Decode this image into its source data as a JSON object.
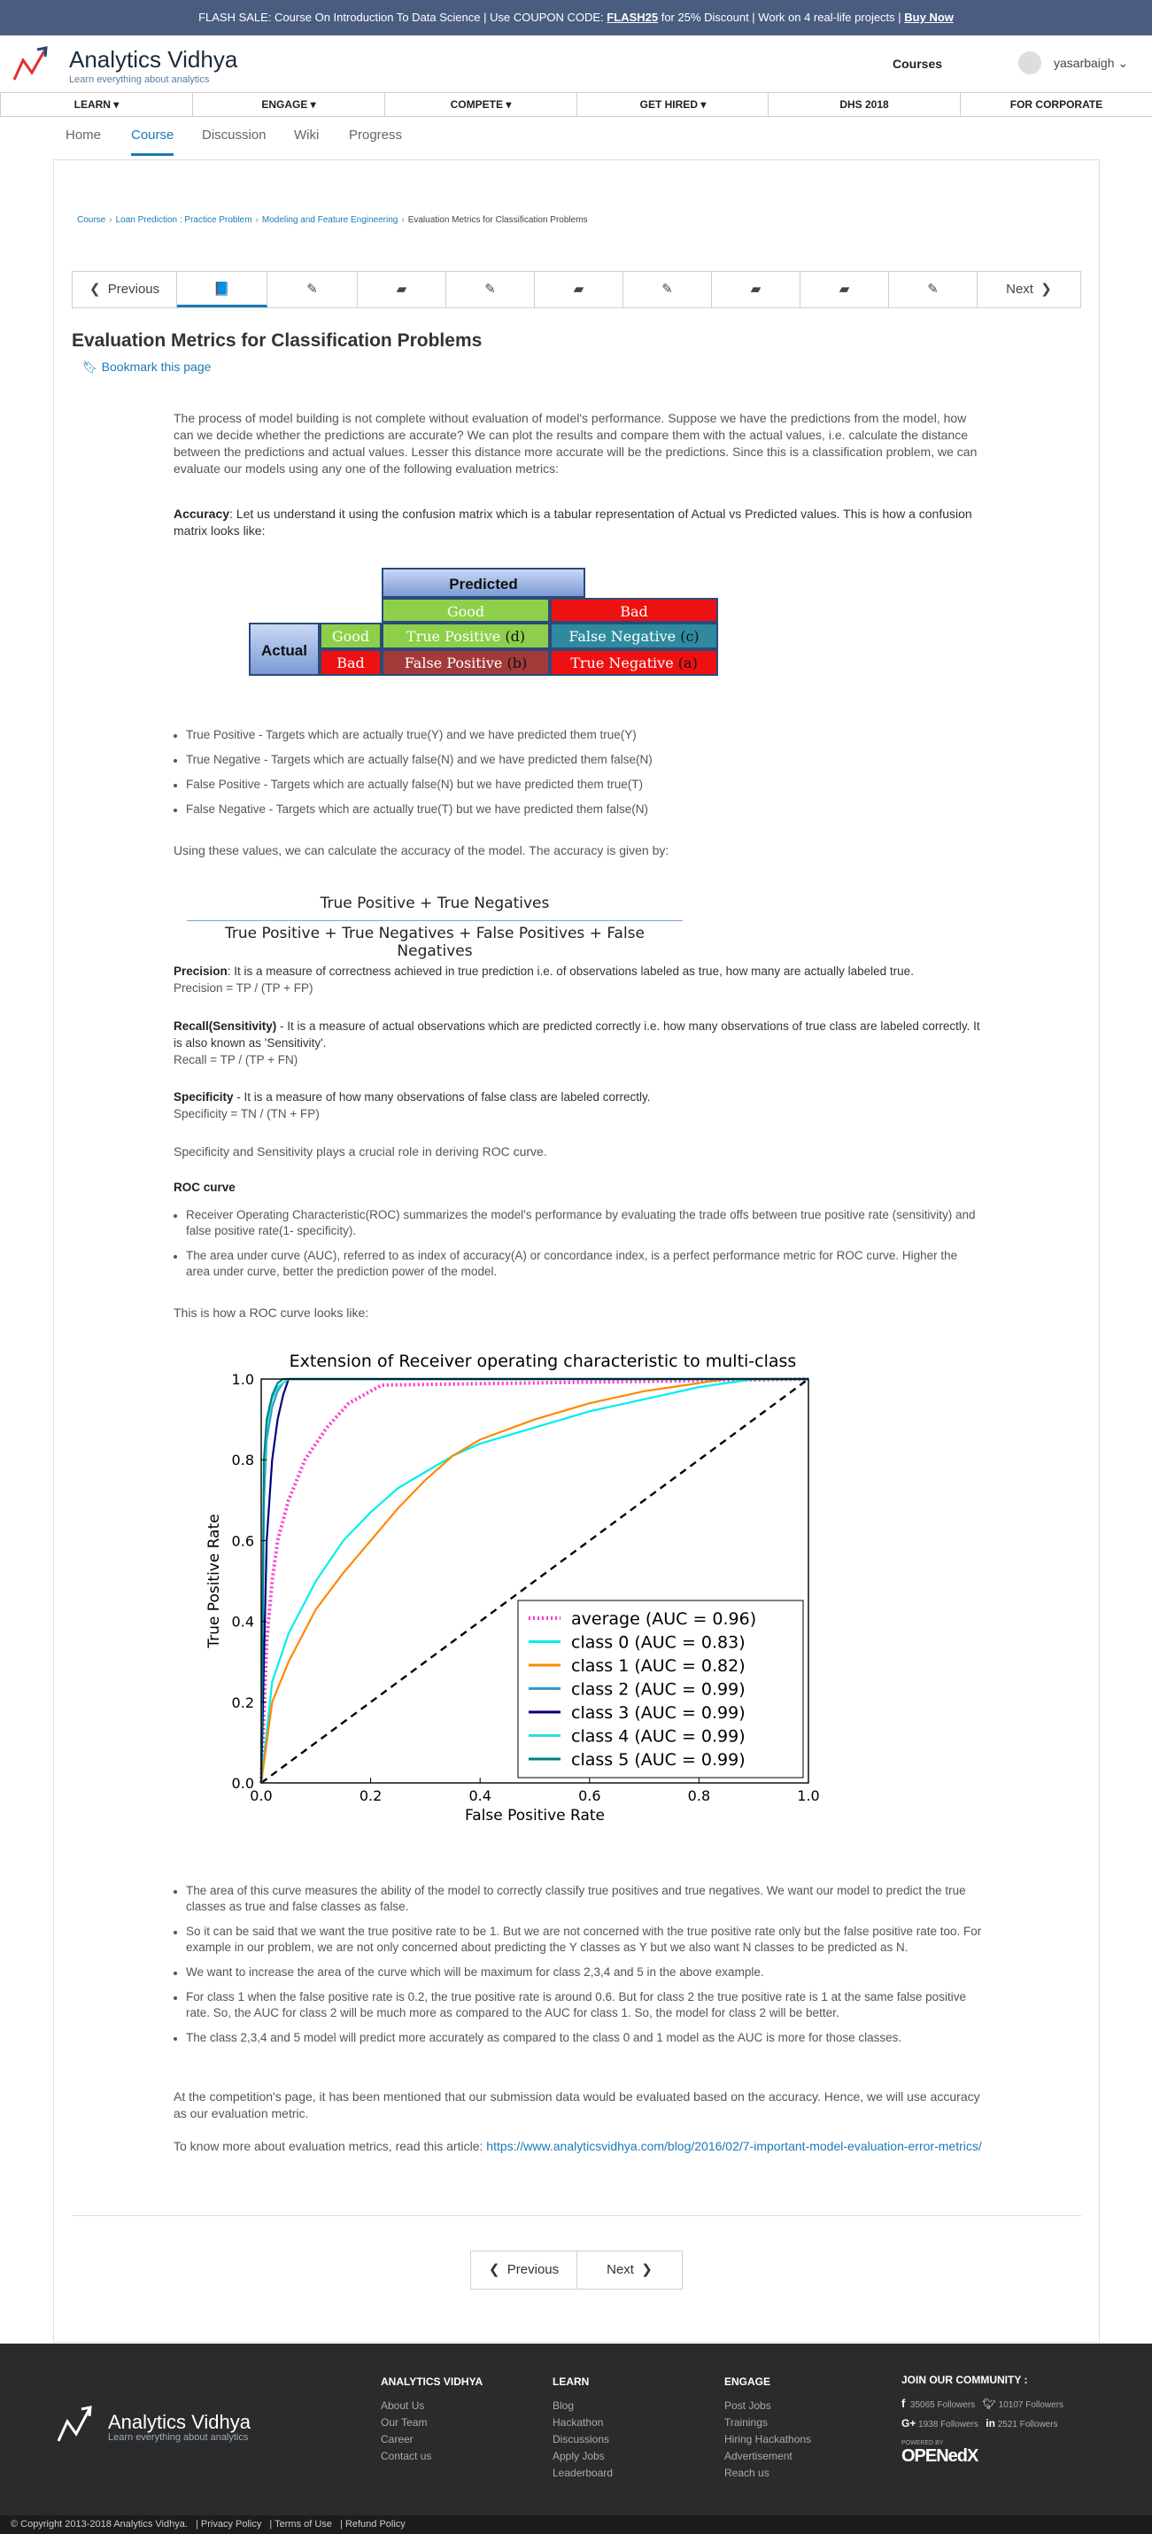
{
  "banner": {
    "prefix": "FLASH SALE: Course On Introduction To Data Science | Use COUPON CODE: ",
    "code": "FLASH25",
    "middle": " for 25% Discount | Work on 4 real-life projects | ",
    "cta": "Buy Now"
  },
  "header": {
    "brand": "Analytics Vidhya",
    "tagline": "Learn everything about analytics",
    "courses": "Courses",
    "username": "yasarbaigh"
  },
  "mainnav": [
    "LEARN ▾",
    "ENGAGE ▾",
    "COMPETE ▾",
    "GET HIRED ▾",
    "DHS 2018",
    "FOR CORPORATE"
  ],
  "coursetabs": [
    "Home",
    "Course",
    "Discussion",
    "Wiki",
    "Progress"
  ],
  "breadcrumbs": [
    "Course",
    "Loan Prediction : Practice Problem",
    "Modeling and Feature Engineering",
    "Evaluation Metrics for Classification Problems"
  ],
  "seqnav": {
    "previous": "Previous",
    "next": "Next"
  },
  "page": {
    "title": "Evaluation Metrics for Classification Problems",
    "bookmark": "Bookmark this page",
    "intro": "The process of model building is not complete without evaluation of model's performance. Suppose we have the predictions from the model, how can we decide whether the predictions are accurate? We can plot the results and compare them with the actual values, i.e. calculate the distance between the predictions and actual values. Lesser this distance more accurate will be the predictions. Since this is a classification problem, we can evaluate our models using any one of the following evaluation metrics:",
    "accuracy_label": "Accuracy",
    "accuracy_text": ": Let us understand it using the confusion matrix which is a tabular representation of Actual vs Predicted values. This is how a confusion matrix looks like:",
    "confusion": {
      "predicted": "Predicted",
      "actual": "Actual",
      "good": "Good",
      "bad": "Bad",
      "tp": "True Positive",
      "tp_tag": "d",
      "fn": "False Negative",
      "fn_tag": "c",
      "fp": "False Positive",
      "fp_tag": "b",
      "tn": "True Negative",
      "tn_tag": "a"
    },
    "defs": [
      "True Positive - Targets which are actually true(Y) and we have predicted them true(Y)",
      "True Negative - Targets which are actually false(N) and we have predicted them false(N)",
      "False Positive - Targets which are actually false(N) but we have predicted them true(T)",
      "False Negative - Targets which are actually true(T) but we have predicted them false(N)"
    ],
    "accuracy_given": "Using these values, we can calculate the accuracy of the model. The accuracy is given by:",
    "frac_num": "True Positive + True Negatives",
    "frac_den": "True Positive + True Negatives + False Positives + False Negatives",
    "precision_label": "Precision",
    "precision_text": ": It is a measure of correctness achieved in true prediction i.e. of observations labeled as true, how many are actually labeled true.",
    "precision_formula": "Precision = TP / (TP + FP)",
    "recall_label": "Recall(Sensitivity)",
    "recall_text": " - It is a measure of actual observations which are predicted correctly i.e. how many observations of true class are labeled correctly. It is also known as 'Sensitivity'.",
    "recall_formula": "Recall = TP / (TP + FN)",
    "specificity_label": "Specificity",
    "specificity_text": " - It is a measure of how many observations of false class are labeled correctly.",
    "specificity_formula": "Specificity = TN / (TN + FP)",
    "roc_intro": "Specificity and Sensitivity plays a crucial role in deriving ROC curve.",
    "roc_heading": "ROC curve",
    "roc_bullets": [
      "Receiver Operating Characteristic(ROC) summarizes the model's performance by evaluating the trade offs between true positive rate (sensitivity) and false positive rate(1- specificity).",
      "The area under curve (AUC), referred to as index of accuracy(A) or concordance index, is a perfect performance metric for ROC curve. Higher the area under curve, better the prediction power of the model."
    ],
    "roc_looks": "This is how a ROC curve looks like:",
    "after_bullets": [
      "The area of this curve measures the ability of the model to correctly classify true positives and true negatives. We want our model to predict the true classes as true and false classes as false.",
      "So it can be said that we want the true positive rate to be 1. But we are not concerned with the true positive rate only but the false positive rate too. For example in our problem, we are not only concerned about predicting the Y classes as Y but we also want N classes to be predicted as N.",
      "We want to increase the area of the curve which will be maximum for class 2,3,4 and 5 in the above example.",
      "For class 1 when the false positive rate is 0.2, the true positive rate is around 0.6. But for class 2 the true positive rate is 1 at the same false positive rate. So, the AUC for class 2 will be much more as compared to the AUC for class 1. So, the model for class 2 will be better.",
      "The class 2,3,4 and 5 model will predict more accurately as compared to the class 0 and 1 model as the AUC is more for those classes."
    ],
    "conclusion": "At the competition's page, it has been mentioned that our submission data would be evaluated based on the accuracy. Hence, we will use accuracy as our evaluation metric.",
    "more_prefix": "To know more about evaluation metrics, read this article: ",
    "more_link": "https://www.analyticsvidhya.com/blog/2016/02/7-important-model-evaluation-error-metrics/"
  },
  "chart_data": {
    "type": "line",
    "title": "Extension of Receiver operating characteristic to multi-class",
    "xlabel": "False Positive Rate",
    "ylabel": "True Positive Rate",
    "xlim": [
      0,
      1
    ],
    "ylim": [
      0,
      1
    ],
    "xticks": [
      "0.0",
      "0.2",
      "0.4",
      "0.6",
      "0.8",
      "1.0"
    ],
    "yticks": [
      "0.0",
      "0.2",
      "0.4",
      "0.6",
      "0.8",
      "1.0"
    ],
    "legend": "lower-right",
    "series": [
      {
        "name": "average (AUC = 0.96)",
        "color": "#ff33cc",
        "dash": "dotted",
        "x": [
          0,
          0.01,
          0.02,
          0.03,
          0.05,
          0.08,
          0.12,
          0.16,
          0.2,
          0.22,
          1.0
        ],
        "y": [
          0,
          0.35,
          0.5,
          0.6,
          0.7,
          0.8,
          0.88,
          0.94,
          0.97,
          0.985,
          1.0
        ]
      },
      {
        "name": "class 0 (AUC = 0.83)",
        "color": "#00eeee",
        "x": [
          0,
          0.02,
          0.05,
          0.1,
          0.15,
          0.2,
          0.25,
          0.3,
          0.35,
          0.4,
          0.5,
          0.6,
          0.7,
          0.8,
          0.9,
          1.0
        ],
        "y": [
          0,
          0.25,
          0.37,
          0.5,
          0.6,
          0.67,
          0.73,
          0.77,
          0.81,
          0.84,
          0.88,
          0.92,
          0.95,
          0.98,
          1.0,
          1.0
        ]
      },
      {
        "name": "class 1 (AUC = 0.82)",
        "color": "#ff8800",
        "x": [
          0,
          0.02,
          0.05,
          0.1,
          0.15,
          0.2,
          0.25,
          0.3,
          0.35,
          0.4,
          0.5,
          0.6,
          0.7,
          0.8,
          0.85,
          1.0
        ],
        "y": [
          0,
          0.2,
          0.3,
          0.43,
          0.52,
          0.6,
          0.68,
          0.75,
          0.81,
          0.85,
          0.9,
          0.94,
          0.97,
          0.99,
          1.0,
          1.0
        ]
      },
      {
        "name": "class 2 (AUC = 0.99)",
        "color": "#3399cc",
        "x": [
          0,
          0.005,
          0.01,
          0.02,
          0.03,
          0.04,
          0.05,
          1.0
        ],
        "y": [
          0,
          0.7,
          0.85,
          0.93,
          0.97,
          0.99,
          1.0,
          1.0
        ]
      },
      {
        "name": "class 3 (AUC = 0.99)",
        "color": "#000080",
        "x": [
          0,
          0.01,
          0.02,
          0.03,
          0.04,
          0.05,
          1.0
        ],
        "y": [
          0,
          0.6,
          0.8,
          0.9,
          0.96,
          1.0,
          1.0
        ]
      },
      {
        "name": "class 4 (AUC = 0.99)",
        "color": "#33dddd",
        "x": [
          0,
          0.005,
          0.01,
          0.02,
          0.03,
          0.05,
          1.0
        ],
        "y": [
          0,
          0.75,
          0.88,
          0.95,
          0.98,
          1.0,
          1.0
        ]
      },
      {
        "name": "class 5 (AUC = 0.99)",
        "color": "#008080",
        "x": [
          0,
          0.005,
          0.01,
          0.02,
          0.03,
          0.04,
          1.0
        ],
        "y": [
          0,
          0.8,
          0.9,
          0.96,
          0.99,
          1.0,
          1.0
        ]
      }
    ],
    "diagonal": {
      "x": [
        0,
        1
      ],
      "y": [
        0,
        1
      ]
    }
  },
  "botnav": {
    "previous": "Previous",
    "next": "Next"
  },
  "footer": {
    "brand": "Analytics Vidhya",
    "tagline": "Learn everything about analytics",
    "cols": [
      {
        "heading": "ANALYTICS VIDHYA",
        "items": [
          "About Us",
          "Our Team",
          "Career",
          "Contact us"
        ]
      },
      {
        "heading": "LEARN",
        "items": [
          "Blog",
          "Hackathon",
          "Discussions",
          "Apply Jobs",
          "Leaderboard"
        ]
      },
      {
        "heading": "ENGAGE",
        "items": [
          "Post Jobs",
          "Trainings",
          "Hiring Hackathons",
          "Advertisement",
          "Reach us"
        ]
      }
    ],
    "community": "JOIN OUR COMMUNITY :",
    "fb": "35065",
    "tw": "10107",
    "gp": "1938",
    "li": "2521",
    "followers": "Followers",
    "powered": "POWERED BY",
    "openedx": "OPENedX"
  },
  "copyright": {
    "text": "© Copyright 2013-2018 Analytics Vidhya.",
    "links": [
      "Privacy Policy",
      "Terms of Use",
      "Refund Policy"
    ]
  }
}
